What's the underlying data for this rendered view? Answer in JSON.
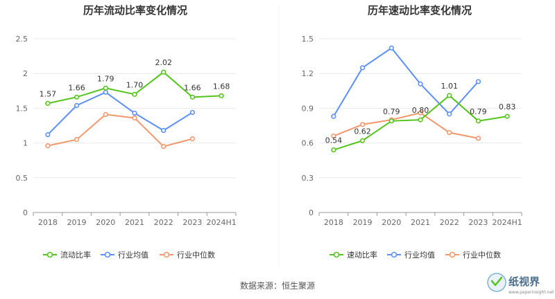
{
  "colors": {
    "primary": "#52c41a",
    "industry_avg": "#5b8ff9",
    "industry_median": "#f4976c",
    "grid": "#e8e8e8",
    "axis": "#999999"
  },
  "chart_data": [
    {
      "type": "line",
      "title": "历年流动比率变化情况",
      "categories": [
        "2018",
        "2019",
        "2020",
        "2021",
        "2022",
        "2023",
        "2024H1"
      ],
      "ylim": [
        0,
        2.5
      ],
      "yticks": [
        "0",
        "0.5",
        "1",
        "1.5",
        "2",
        "2.5"
      ],
      "ytick_values": [
        0,
        0.5,
        1,
        1.5,
        2,
        2.5
      ],
      "grid": true,
      "legend_position": "bottom",
      "series": [
        {
          "name": "流动比率",
          "values": [
            1.57,
            1.66,
            1.79,
            1.7,
            2.02,
            1.66,
            1.68
          ],
          "labels": [
            "1.57",
            "1.66",
            "1.79",
            "1.70",
            "2.02",
            "1.66",
            "1.68"
          ]
        },
        {
          "name": "行业均值",
          "values": [
            1.12,
            1.54,
            1.73,
            1.43,
            1.18,
            1.44,
            null
          ]
        },
        {
          "name": "行业中位数",
          "values": [
            0.96,
            1.05,
            1.41,
            1.36,
            0.95,
            1.06,
            null
          ]
        }
      ]
    },
    {
      "type": "line",
      "title": "历年速动比率变化情况",
      "categories": [
        "2018",
        "2019",
        "2020",
        "2021",
        "2022",
        "2023",
        "2024H1"
      ],
      "ylim": [
        0,
        1.5
      ],
      "yticks": [
        "0",
        "0.3",
        "0.6",
        "0.9",
        "1.2",
        "1.5"
      ],
      "ytick_values": [
        0,
        0.3,
        0.6,
        0.9,
        1.2,
        1.5
      ],
      "grid": true,
      "legend_position": "bottom",
      "series": [
        {
          "name": "速动比率",
          "values": [
            0.54,
            0.62,
            0.79,
            0.8,
            1.01,
            0.79,
            0.83
          ],
          "labels": [
            "0.54",
            "0.62",
            "0.79",
            "0.80",
            "1.01",
            "0.79",
            "0.83"
          ]
        },
        {
          "name": "行业均值",
          "values": [
            0.83,
            1.25,
            1.42,
            1.11,
            0.85,
            1.13,
            null
          ]
        },
        {
          "name": "行业中位数",
          "values": [
            0.66,
            0.76,
            0.8,
            0.86,
            0.69,
            0.64,
            null
          ]
        }
      ]
    }
  ],
  "source_text": "数据来源：恒生聚源",
  "brand": {
    "name": "纸视界",
    "url": "www.paperinsight.net"
  }
}
